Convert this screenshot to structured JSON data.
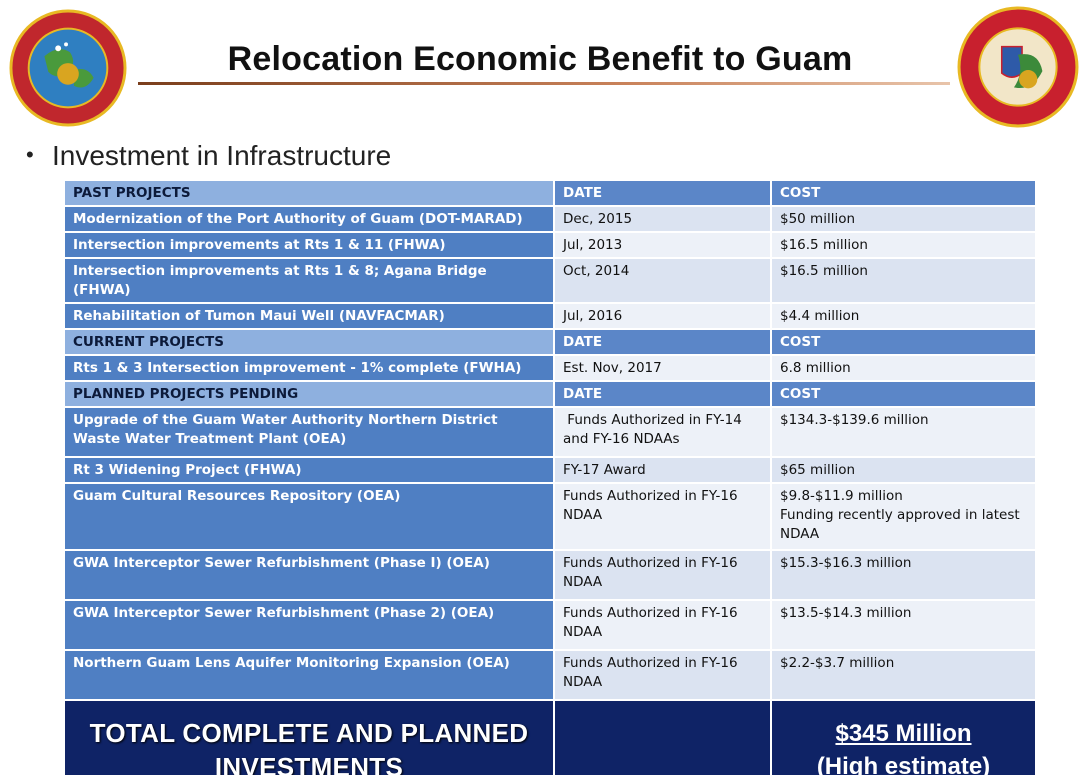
{
  "header": {
    "title": "Relocation Economic Benefit to Guam",
    "left_seal_icon": "marine-corps-forces-pacific-seal",
    "right_seal_icon": "marine-corps-activity-guam-seal",
    "rule_color": "#a0522d"
  },
  "bullet": "Investment in Infrastructure",
  "table": {
    "sections": [
      {
        "header": [
          "PAST PROJECTS",
          "DATE",
          "COST"
        ],
        "rows": [
          [
            "Modernization of the Port Authority of Guam (DOT-MARAD)",
            "Dec, 2015",
            "$50 million"
          ],
          [
            "Intersection improvements at Rts 1 & 11 (FHWA)",
            "Jul, 2013",
            "$16.5 million"
          ],
          [
            "Intersection improvements at Rts 1 & 8; Agana Bridge (FHWA)",
            "Oct, 2014",
            "$16.5 million"
          ],
          [
            "Rehabilitation of Tumon Maui Well (NAVFACMAR)",
            "Jul, 2016",
            "$4.4 million"
          ]
        ]
      },
      {
        "header": [
          "CURRENT PROJECTS",
          "DATE",
          "COST"
        ],
        "rows": [
          [
            "Rts 1 & 3 Intersection improvement - 1% complete (FWHA)",
            "Est. Nov, 2017",
            "6.8 million"
          ]
        ]
      },
      {
        "header": [
          "PLANNED PROJECTS PENDING",
          "DATE",
          "COST"
        ],
        "rows": [
          [
            "Upgrade of the Guam Water Authority Northern District Waste Water Treatment Plant (OEA)",
            " Funds Authorized in FY-14 and FY-16 NDAAs",
            "$134.3-$139.6  million"
          ],
          [
            "Rt 3 Widening Project  (FHWA)",
            "FY-17 Award",
            "$65 million"
          ],
          [
            "Guam Cultural Resources Repository (OEA)",
            "Funds Authorized in FY-16 NDAA",
            "$9.8-$11.9  million\nFunding recently approved in latest NDAA"
          ],
          [
            "GWA Interceptor Sewer Refurbishment (Phase I) (OEA)",
            "Funds Authorized in FY-16 NDAA",
            "$15.3-$16.3  million"
          ],
          [
            "GWA Interceptor Sewer Refurbishment (Phase 2) (OEA)",
            "Funds Authorized in FY-16 NDAA",
            "$13.5-$14.3  million"
          ],
          [
            "Northern Guam Lens Aquifer Monitoring Expansion (OEA)",
            "Funds Authorized in FY-16 NDAA",
            "$2.2-$3.7 million"
          ]
        ]
      }
    ],
    "total": {
      "label_line1": "TOTAL COMPLETE AND PLANNED",
      "label_line2": "INVESTMENTS",
      "amount_line1": "$345 Million",
      "amount_line2": "(High estimate)"
    }
  }
}
